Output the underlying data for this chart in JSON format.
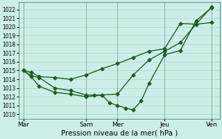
{
  "xlabel": "Pression niveau de la mer( hPa )",
  "ylim": [
    1009.5,
    1022.8
  ],
  "yticks": [
    1010,
    1011,
    1012,
    1013,
    1014,
    1015,
    1016,
    1017,
    1018,
    1019,
    1020,
    1021,
    1022
  ],
  "xtick_labels": [
    "Mar",
    "Sam",
    "Mer",
    "Jeu",
    "Ven"
  ],
  "xtick_positions": [
    0,
    4,
    6,
    9,
    12
  ],
  "xlim": [
    -0.3,
    12.5
  ],
  "background_color": "#cceee8",
  "grid_color": "#aaddcc",
  "line_color": "#1e5c1e",
  "series1_x": [
    0,
    0.5,
    1,
    2,
    3,
    4,
    5,
    6,
    7,
    8,
    9,
    10,
    11,
    12
  ],
  "series1_y": [
    1015.0,
    1014.8,
    1014.3,
    1014.2,
    1014.0,
    1014.5,
    1015.2,
    1015.8,
    1016.5,
    1017.2,
    1017.5,
    1020.4,
    1020.3,
    1022.3
  ],
  "series2_x": [
    0,
    0.5,
    1,
    2,
    3,
    4,
    5,
    6,
    7,
    8,
    9,
    10,
    11,
    12
  ],
  "series2_y": [
    1015.0,
    1014.3,
    1013.2,
    1012.5,
    1012.3,
    1012.0,
    1012.2,
    1012.3,
    1014.5,
    1016.2,
    1017.2,
    1018.2,
    1020.3,
    1020.5
  ],
  "series3_x": [
    0,
    0.5,
    1,
    2,
    3,
    4,
    4.5,
    5,
    5.5,
    6,
    6.5,
    7,
    7.5,
    8,
    9,
    10,
    11,
    12
  ],
  "series3_y": [
    1015.0,
    1014.4,
    1014.2,
    1013.0,
    1012.7,
    1012.2,
    1012.2,
    1012.2,
    1011.3,
    1011.0,
    1010.7,
    1010.5,
    1011.5,
    1013.5,
    1016.8,
    1017.3,
    1020.7,
    1022.2
  ],
  "marker": "D",
  "markersize": 2.5,
  "linewidth": 1.0,
  "ytick_fontsize": 5.5,
  "xtick_fontsize": 6.5,
  "xlabel_fontsize": 7.5
}
